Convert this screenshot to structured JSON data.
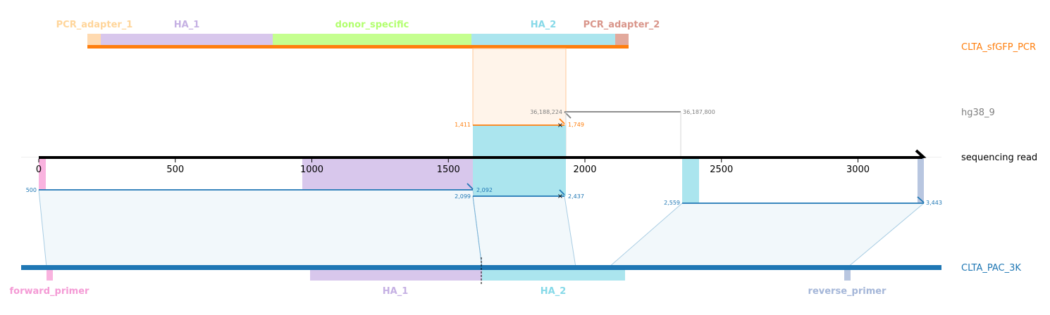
{
  "tracks": [
    {
      "key": "pcr",
      "label": "CLTA_sfGFP_PCR",
      "color": "#ff7f0e"
    },
    {
      "key": "genome",
      "label": "hg38_9",
      "color": "#7f7f7f"
    },
    {
      "key": "read",
      "label": "sequencing read",
      "color": "#000000"
    },
    {
      "key": "ref",
      "label": "CLTA_PAC_3K",
      "color": "#1f77b4"
    }
  ],
  "pcr_features": [
    {
      "name": "PCR_adapter_1",
      "color": "#ffdab0",
      "label_color": "#ffd59a"
    },
    {
      "name": "HA_1",
      "color": "#d8c7ec",
      "label_color": "#c5b0e3"
    },
    {
      "name": "donor_specific",
      "color": "#c5ff8f",
      "label_color": "#b2ff6e"
    },
    {
      "name": "HA_2",
      "color": "#abe5ee",
      "label_color": "#86d9e8"
    },
    {
      "name": "PCR_adapter_2",
      "color": "#e2a99c",
      "label_color": "#d9958a"
    }
  ],
  "ref_features": [
    {
      "name": "forward_primer",
      "color": "#f9b3df",
      "label_color": "#f49ad5"
    },
    {
      "name": "HA_1",
      "color": "#d8c7ec",
      "label_color": "#c5b0e3"
    },
    {
      "name": "HA_2",
      "color": "#abe5ee",
      "label_color": "#86d9e8"
    },
    {
      "name": "reverse_primer",
      "color": "#b8c6e0",
      "label_color": "#a4b6d8"
    }
  ],
  "read_axis": {
    "ticks": [
      "0",
      "500",
      "1000",
      "1500",
      "2000",
      "2500",
      "3000"
    ]
  },
  "alignments": {
    "pcr": {
      "read_start": "1,411",
      "read_end": "1,749"
    },
    "genome": {
      "start": "36,188,224",
      "end": "36,187,800"
    },
    "ref": [
      {
        "read_start": "500",
        "read_end": "2,092"
      },
      {
        "read_start": "2,099",
        "read_end": "2,437"
      },
      {
        "read_start": "2,559",
        "read_end": "3,443"
      }
    ]
  },
  "colors": {
    "pcr": "#ff7f0e",
    "genome": "#7f7f7f",
    "ref": "#1f77b4",
    "read": "#000000"
  }
}
